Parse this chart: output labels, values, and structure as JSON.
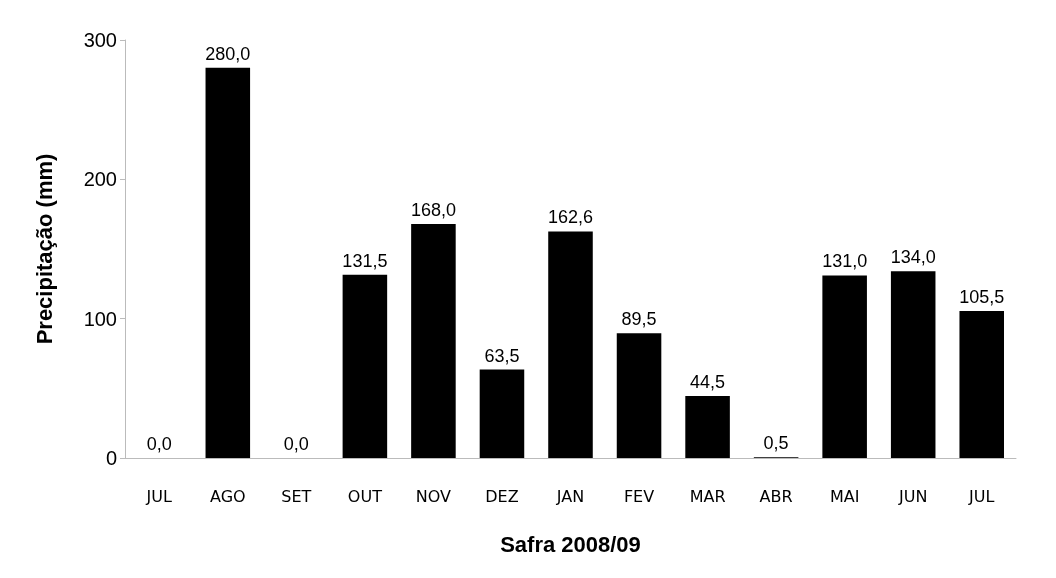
{
  "chart_data": {
    "type": "bar",
    "xlabel": "Safra 2008/09",
    "ylabel": "Precipitação (mm)",
    "categories": [
      "JUL",
      "AGO",
      "SET",
      "OUT",
      "NOV",
      "DEZ",
      "JAN",
      "FEV",
      "MAR",
      "ABR",
      "MAI",
      "JUN",
      "JUL"
    ],
    "values": [
      0,
      280,
      0,
      131.5,
      168,
      63.5,
      162.6,
      89.5,
      44.5,
      0.5,
      131,
      134,
      105.5
    ],
    "value_labels": [
      "0,0",
      "280,0",
      "0,0",
      "131,5",
      "168,0",
      "63,5",
      "162,6",
      "89,5",
      "44,5",
      "0,5",
      "131,0",
      "134,0",
      "105,5"
    ],
    "color": "#000000",
    "ylim": [
      0,
      300
    ],
    "yticks": [
      0,
      100,
      200,
      300
    ],
    "grid": false
  }
}
